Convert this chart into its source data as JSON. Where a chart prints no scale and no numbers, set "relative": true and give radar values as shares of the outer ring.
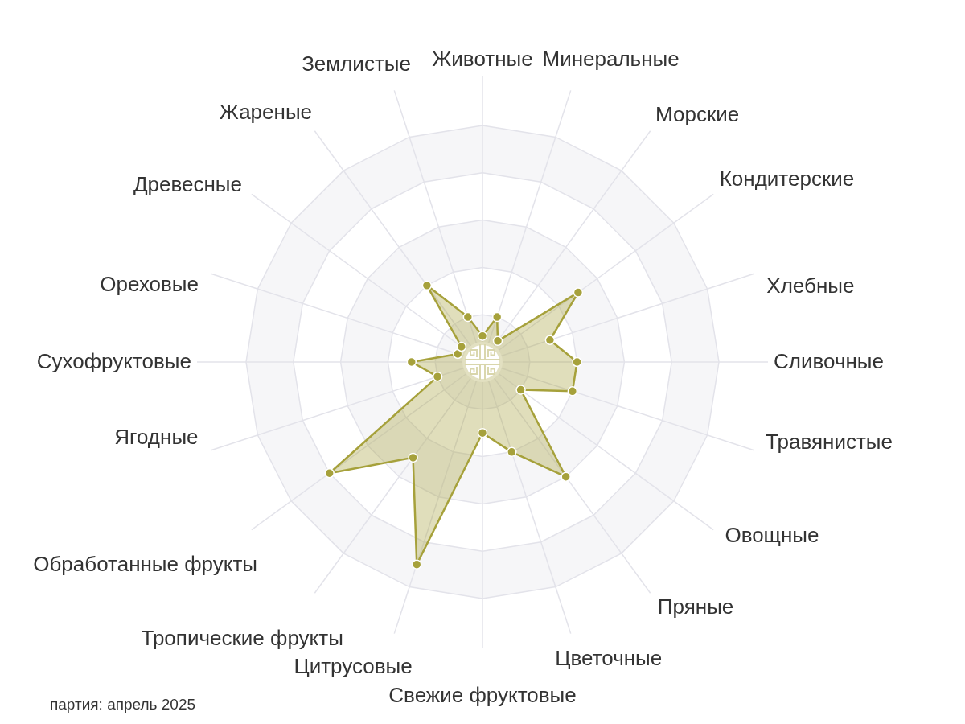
{
  "chart_data": {
    "type": "radar",
    "categories": [
      "Животные",
      "Минеральные",
      "Морские",
      "Кондитерские",
      "Хлебные",
      "Сливочные",
      "Травянистые",
      "Овощные",
      "Пряные",
      "Цветочные",
      "Свежие фруктовые",
      "Цитрусовые",
      "Тропические фрукты",
      "Обработанные фрукты",
      "Ягодные",
      "Сухофруктовые",
      "Ореховые",
      "Древесные",
      "Жареные",
      "Землистые"
    ],
    "relative": true,
    "grid": true,
    "marker": "circle",
    "series": [
      {
        "color": "#a6a13b",
        "values": [
          0.11,
          0.2,
          0.11,
          0.5,
          0.3,
          0.4,
          0.4,
          0.2,
          0.6,
          0.4,
          0.3,
          0.9,
          0.5,
          0.8,
          0.2,
          0.3,
          0.11,
          0.11,
          0.4,
          0.2
        ]
      }
    ],
    "annotations": [
      "партия: апрель 2025"
    ]
  }
}
